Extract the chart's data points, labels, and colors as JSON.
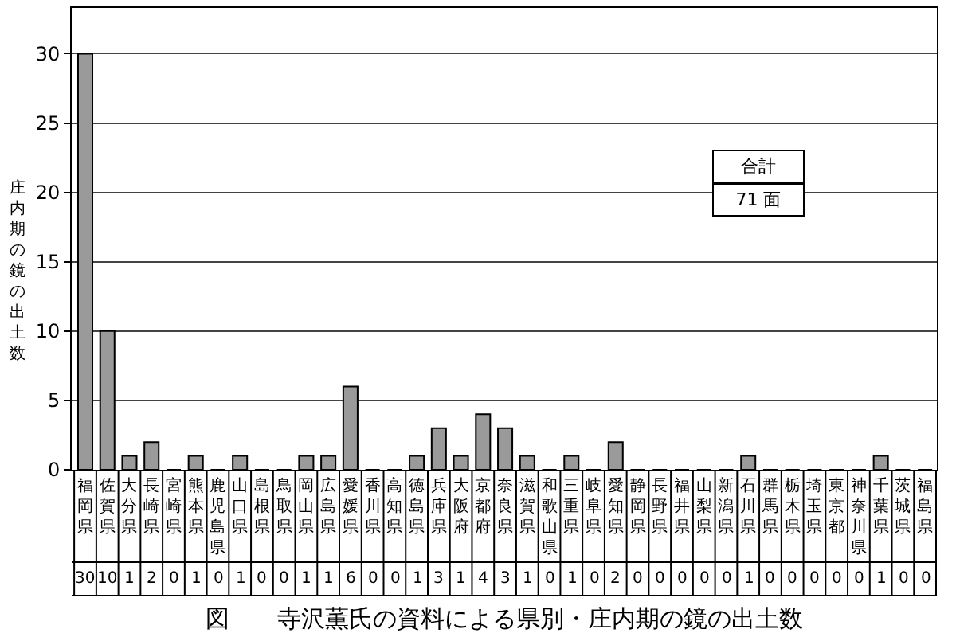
{
  "chart_data": {
    "type": "bar",
    "title": "図　　寺沢薫氏の資料による県別・庄内期の鏡の出土数",
    "ylabel": "庄内期の鏡の出土数",
    "categories": [
      "福岡県",
      "佐賀県",
      "大分県",
      "長崎県",
      "宮崎県",
      "熊本県",
      "鹿児島県",
      "山口県",
      "島根県",
      "鳥取県",
      "岡山県",
      "広島県",
      "愛媛県",
      "香川県",
      "高知県",
      "徳島県",
      "兵庫県",
      "大阪府",
      "京都府",
      "奈良県",
      "滋賀県",
      "和歌山県",
      "三重県",
      "岐阜県",
      "愛知県",
      "静岡県",
      "長野県",
      "福井県",
      "山梨県",
      "新潟県",
      "石川県",
      "群馬県",
      "栃木県",
      "埼玉県",
      "東京都",
      "神奈川県",
      "千葉県",
      "茨城県",
      "福島県"
    ],
    "values": [
      30,
      10,
      1,
      2,
      0,
      1,
      0,
      1,
      0,
      0,
      1,
      1,
      6,
      0,
      0,
      1,
      3,
      1,
      4,
      3,
      1,
      0,
      1,
      0,
      2,
      0,
      0,
      0,
      0,
      0,
      1,
      0,
      0,
      0,
      0,
      0,
      1,
      0,
      0
    ],
    "color": "#9a9a9a",
    "ylim": [
      0,
      33.3
    ],
    "yticks": [
      0,
      5,
      10,
      15,
      20,
      25,
      30
    ],
    "grid": "y",
    "data_labels": true,
    "annotations": [
      "合計",
      "71 面"
    ]
  }
}
